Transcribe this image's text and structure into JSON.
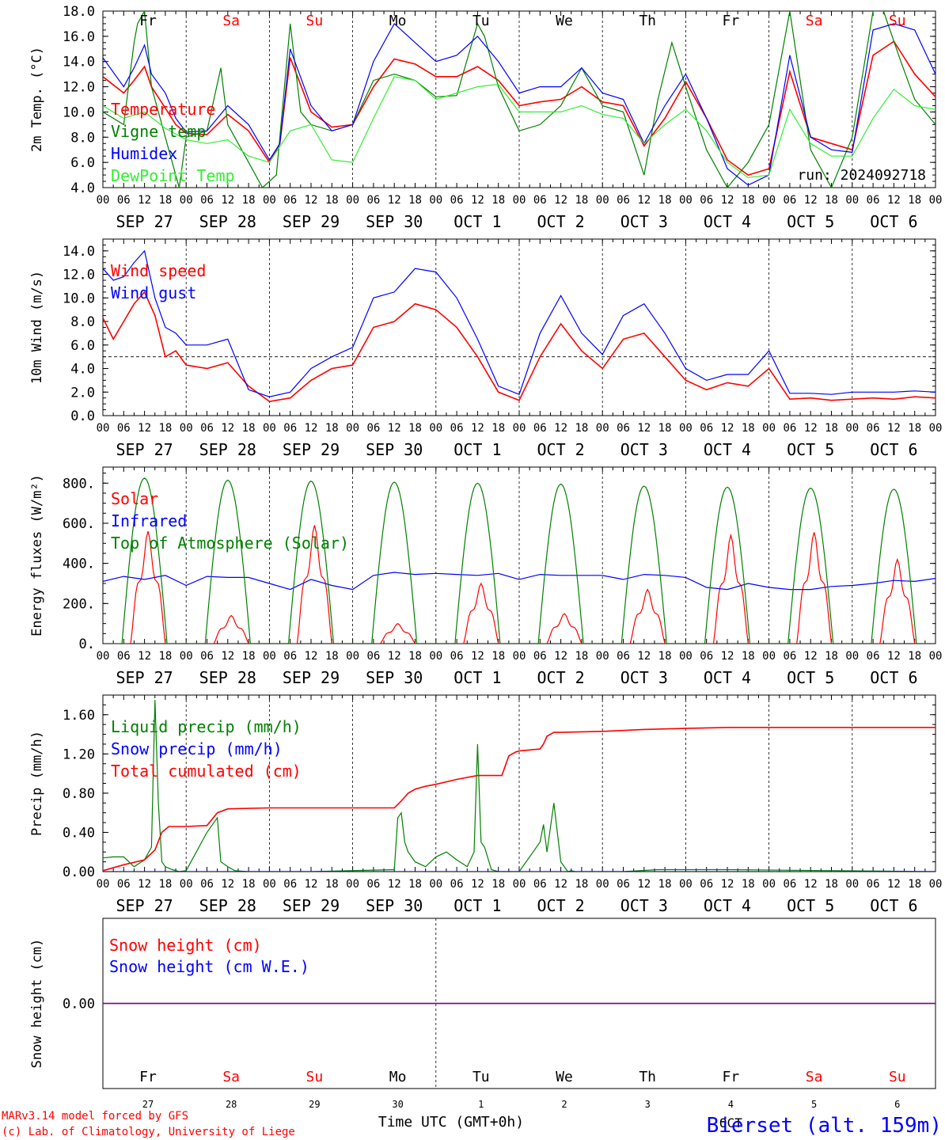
{
  "colors": {
    "red": "#ff0000",
    "green": "#008000",
    "blue": "#0000ff",
    "lightgreen": "#33ee33",
    "purple": "#800080",
    "black": "#000000"
  },
  "run_label": "run: 2024092718",
  "footer": {
    "credit1": "MARv3.14 model forced by GFS",
    "credit2": "(c) Lab. of Climatology, University of Liege",
    "xlabel": "Time UTC (GMT+0h)",
    "station": "Bierset (alt. 159m)",
    "month": "OCT"
  },
  "days": [
    {
      "abbr": "Fr",
      "date": "SEP 27",
      "num": "27",
      "weekend": false
    },
    {
      "abbr": "Sa",
      "date": "SEP 28",
      "num": "28",
      "weekend": true
    },
    {
      "abbr": "Su",
      "date": "SEP 29",
      "num": "29",
      "weekend": true
    },
    {
      "abbr": "Mo",
      "date": "SEP 30",
      "num": "30",
      "weekend": false
    },
    {
      "abbr": "Tu",
      "date": "OCT  1",
      "num": "1",
      "weekend": false
    },
    {
      "abbr": "We",
      "date": "OCT  2",
      "num": "2",
      "weekend": false
    },
    {
      "abbr": "Th",
      "date": "OCT  3",
      "num": "3",
      "weekend": false
    },
    {
      "abbr": "Fr",
      "date": "OCT  4",
      "num": "4",
      "weekend": false
    },
    {
      "abbr": "Sa",
      "date": "OCT  5",
      "num": "5",
      "weekend": true
    },
    {
      "abbr": "Su",
      "date": "OCT  6",
      "num": "6",
      "weekend": true
    }
  ],
  "hour_labels": [
    "00",
    "06",
    "12",
    "18"
  ],
  "chart_data": [
    {
      "id": "temperature",
      "type": "line",
      "ylabel": "2m Temp. (°C)",
      "xunit": "hours since SEP 27 00 UTC",
      "ylim": [
        4,
        18
      ],
      "yticks": [
        4,
        6,
        8,
        10,
        12,
        14,
        16,
        18
      ],
      "ytick_labels": [
        "4.0",
        "6.0",
        "8.0",
        "10.0",
        "12.0",
        "14.0",
        "16.0",
        "18.0"
      ],
      "series": [
        {
          "name": "Temperature",
          "color": "red",
          "x": [
            0,
            6,
            9,
            12,
            14,
            18,
            21,
            24,
            30,
            36,
            42,
            48,
            51,
            54,
            60,
            66,
            72,
            78,
            84,
            90,
            96,
            102,
            108,
            114,
            120,
            126,
            132,
            138,
            144,
            150,
            156,
            162,
            168,
            174,
            180,
            186,
            192,
            198,
            204,
            210,
            216,
            222,
            228,
            234,
            240
          ],
          "y": [
            12.8,
            11.5,
            12.5,
            13.6,
            12.0,
            10.3,
            9.0,
            8.3,
            8.2,
            9.8,
            8.5,
            6.0,
            7.5,
            14.3,
            10.0,
            8.8,
            9.0,
            12.0,
            14.2,
            13.8,
            12.8,
            12.8,
            13.6,
            12.5,
            10.5,
            10.8,
            11.0,
            12.0,
            10.8,
            10.5,
            7.3,
            9.5,
            12.4,
            9.5,
            6.2,
            5.0,
            5.5,
            13.2,
            8.0,
            7.5,
            7.0,
            14.5,
            15.6,
            13.0,
            11.2
          ]
        },
        {
          "name": "Vigne temp",
          "color": "green",
          "x": [
            0,
            6,
            9,
            10,
            12,
            14,
            18,
            22,
            24,
            30,
            34,
            36,
            42,
            46,
            50,
            54,
            57,
            60,
            66,
            72,
            78,
            84,
            90,
            96,
            102,
            108,
            110,
            114,
            120,
            126,
            132,
            138,
            144,
            150,
            156,
            160,
            164,
            168,
            174,
            180,
            186,
            192,
            198,
            204,
            210,
            216,
            222,
            225,
            230,
            234,
            240
          ],
          "y": [
            10.0,
            9.0,
            15.5,
            17.0,
            18.0,
            12.0,
            8.0,
            4.0,
            8.0,
            8.5,
            13.5,
            9.0,
            6.0,
            4.0,
            5.0,
            17.0,
            10.0,
            9.0,
            8.5,
            9.0,
            12.5,
            13.0,
            12.5,
            11.2,
            11.3,
            17.0,
            16.0,
            12.0,
            8.5,
            9.0,
            10.5,
            13.5,
            10.5,
            10.0,
            5.0,
            11.0,
            15.5,
            12.0,
            7.0,
            4.0,
            6.0,
            9.0,
            18.0,
            7.0,
            4.0,
            8.0,
            18.0,
            18.0,
            14.0,
            11.0,
            9.0
          ]
        },
        {
          "name": "Humidex",
          "color": "blue",
          "x": [
            0,
            6,
            9,
            12,
            14,
            18,
            21,
            24,
            30,
            36,
            42,
            48,
            51,
            54,
            60,
            66,
            72,
            78,
            84,
            90,
            96,
            102,
            108,
            114,
            120,
            126,
            132,
            138,
            144,
            150,
            156,
            162,
            168,
            174,
            180,
            186,
            192,
            198,
            204,
            210,
            216,
            222,
            228,
            234,
            240
          ],
          "y": [
            14.3,
            12.0,
            13.5,
            15.3,
            13.0,
            11.5,
            9.5,
            8.4,
            8.5,
            10.5,
            9.0,
            6.2,
            7.5,
            15.0,
            10.5,
            8.5,
            9.0,
            14.0,
            17.0,
            15.5,
            14.0,
            14.5,
            16.0,
            14.0,
            11.5,
            12.0,
            12.0,
            13.5,
            11.5,
            11.0,
            7.5,
            10.5,
            13.0,
            9.5,
            5.5,
            4.2,
            5.0,
            14.5,
            8.0,
            7.0,
            6.8,
            16.5,
            17.0,
            16.5,
            13.0
          ]
        },
        {
          "name": "DewPoint Temp",
          "color": "lightgreen",
          "x": [
            0,
            6,
            12,
            18,
            24,
            30,
            36,
            42,
            48,
            54,
            60,
            66,
            72,
            78,
            84,
            90,
            96,
            102,
            108,
            114,
            120,
            126,
            132,
            138,
            144,
            150,
            156,
            162,
            168,
            174,
            180,
            186,
            192,
            198,
            204,
            210,
            216,
            222,
            228,
            234,
            240
          ],
          "y": [
            10.5,
            9.5,
            10.0,
            8.7,
            7.8,
            7.5,
            7.8,
            6.5,
            6.0,
            8.5,
            9.0,
            6.2,
            6.0,
            9.5,
            12.8,
            12.5,
            11.0,
            11.5,
            12.0,
            12.2,
            10.0,
            10.0,
            10.0,
            10.5,
            9.8,
            9.5,
            7.5,
            9.0,
            10.2,
            8.5,
            6.0,
            4.8,
            5.0,
            10.2,
            7.5,
            6.5,
            6.5,
            9.5,
            11.8,
            10.5,
            10.2
          ]
        }
      ]
    },
    {
      "id": "wind",
      "type": "line",
      "ylabel": "10m Wind (m/s)",
      "xunit": "hours since SEP 27 00 UTC",
      "ylim": [
        0,
        15
      ],
      "yticks": [
        0,
        2,
        4,
        6,
        8,
        10,
        12,
        14
      ],
      "ytick_labels": [
        "0.0",
        "2.0",
        "4.0",
        "6.0",
        "8.0",
        "10.0",
        "12.0",
        "14.0"
      ],
      "ref_line": 5,
      "series": [
        {
          "name": "Wind speed",
          "color": "red",
          "x": [
            0,
            3,
            6,
            9,
            12,
            15,
            18,
            21,
            24,
            30,
            36,
            42,
            48,
            54,
            60,
            66,
            72,
            78,
            84,
            90,
            96,
            102,
            108,
            114,
            120,
            126,
            132,
            138,
            144,
            150,
            156,
            162,
            168,
            174,
            180,
            186,
            192,
            198,
            204,
            210,
            216,
            222,
            228,
            234,
            240
          ],
          "y": [
            8.3,
            6.5,
            8.0,
            9.5,
            10.5,
            8.5,
            5.0,
            5.5,
            4.3,
            4.0,
            4.5,
            2.5,
            1.2,
            1.5,
            3.0,
            4.0,
            4.3,
            7.5,
            8.0,
            9.5,
            9.0,
            7.5,
            5.0,
            2.0,
            1.3,
            5.0,
            7.8,
            5.5,
            4.0,
            6.5,
            7.0,
            5.0,
            3.0,
            2.2,
            2.8,
            2.5,
            4.0,
            1.4,
            1.5,
            1.3,
            1.4,
            1.5,
            1.4,
            1.6,
            1.5
          ]
        },
        {
          "name": "Wind gust",
          "color": "blue",
          "x": [
            0,
            3,
            6,
            9,
            12,
            15,
            18,
            21,
            24,
            30,
            36,
            42,
            48,
            54,
            60,
            66,
            72,
            78,
            84,
            90,
            96,
            102,
            108,
            114,
            120,
            126,
            132,
            138,
            144,
            150,
            156,
            162,
            168,
            174,
            180,
            186,
            192,
            198,
            204,
            210,
            216,
            222,
            228,
            234,
            240
          ],
          "y": [
            12.5,
            11.5,
            11.8,
            13.0,
            14.0,
            10.0,
            7.5,
            7.0,
            6.0,
            6.0,
            6.5,
            2.2,
            1.6,
            2.0,
            4.0,
            5.0,
            5.8,
            10.0,
            10.5,
            12.5,
            12.2,
            10.0,
            6.5,
            2.5,
            1.8,
            7.0,
            10.2,
            7.0,
            5.2,
            8.5,
            9.5,
            7.0,
            4.0,
            3.0,
            3.5,
            3.5,
            5.5,
            1.9,
            1.9,
            1.8,
            2.0,
            2.0,
            2.0,
            2.1,
            2.0
          ]
        }
      ]
    },
    {
      "id": "energy",
      "type": "line",
      "ylabel": "Energy fluxes (W/m²)",
      "xunit": "hours since SEP 27 00 UTC",
      "ylim": [
        0,
        880
      ],
      "yticks": [
        0,
        200,
        400,
        600,
        800
      ],
      "ytick_labels": [
        "0.",
        "200.",
        "400.",
        "600.",
        "800."
      ],
      "series": [
        {
          "name": "Solar",
          "color": "red",
          "peak_hour": 13,
          "day_peaks": [
            560,
            140,
            590,
            100,
            300,
            150,
            270,
            540,
            555,
            420
          ]
        },
        {
          "name": "Infrared",
          "color": "blue",
          "x": [
            0,
            6,
            12,
            18,
            24,
            30,
            36,
            42,
            48,
            54,
            60,
            66,
            72,
            78,
            84,
            90,
            96,
            102,
            108,
            114,
            120,
            126,
            132,
            138,
            144,
            150,
            156,
            162,
            168,
            174,
            180,
            186,
            192,
            198,
            204,
            210,
            216,
            222,
            228,
            234,
            240
          ],
          "y": [
            310,
            335,
            320,
            340,
            290,
            335,
            330,
            330,
            300,
            270,
            320,
            290,
            270,
            340,
            355,
            345,
            350,
            345,
            340,
            350,
            320,
            345,
            340,
            340,
            340,
            320,
            345,
            340,
            330,
            280,
            270,
            300,
            280,
            270,
            270,
            285,
            290,
            300,
            315,
            310,
            325
          ]
        },
        {
          "name": "Top of Atmosphere (Solar)",
          "color": "green",
          "peak_hour": 12,
          "day_peaks": [
            825,
            815,
            810,
            805,
            800,
            795,
            785,
            780,
            775,
            770
          ]
        }
      ]
    },
    {
      "id": "precip",
      "type": "line",
      "ylabel": "Precip (mm/h)",
      "xunit": "hours since SEP 27 00 UTC",
      "ylim": [
        0,
        1.8
      ],
      "yticks": [
        0,
        0.4,
        0.8,
        1.2,
        1.6
      ],
      "ytick_labels": [
        "0.00",
        "0.40",
        "0.80",
        "1.20",
        "1.60"
      ],
      "series": [
        {
          "name": "Liquid precip (mm/h)",
          "color": "green",
          "x": [
            0,
            3,
            6,
            9,
            12,
            14,
            15,
            16,
            17,
            18,
            20,
            22,
            24,
            30,
            33,
            34,
            36,
            38,
            42,
            48,
            60,
            84,
            85,
            86,
            87,
            88,
            90,
            93,
            96,
            99,
            102,
            105,
            107,
            108,
            109,
            110,
            112,
            114,
            116,
            118,
            120,
            126,
            127,
            128,
            130,
            132,
            134,
            135,
            136,
            138,
            144,
            150,
            160,
            180,
            240
          ],
          "y": [
            0.14,
            0.15,
            0.15,
            0.05,
            0.12,
            0.25,
            1.75,
            0.7,
            0.1,
            0.05,
            0.02,
            0,
            0.01,
            0.4,
            0.55,
            0.1,
            0.05,
            0.01,
            0,
            0,
            0,
            0.02,
            0.55,
            0.6,
            0.3,
            0.2,
            0.1,
            0.05,
            0.15,
            0.2,
            0.12,
            0.05,
            0.2,
            1.3,
            0.3,
            0.25,
            0.02,
            0,
            0,
            0,
            0,
            0.3,
            0.48,
            0.2,
            0.7,
            0.1,
            0,
            0.01,
            0,
            0,
            0,
            0,
            0.02,
            0.02,
            0
          ]
        },
        {
          "name": "Snow precip (mm/h)",
          "color": "blue",
          "x": [
            0,
            240
          ],
          "y": [
            0,
            0
          ]
        },
        {
          "name": "Total cumulated (cm)",
          "color": "red",
          "x": [
            0,
            6,
            12,
            15,
            17,
            19,
            24,
            30,
            33,
            36,
            48,
            60,
            72,
            84,
            86,
            88,
            90,
            93,
            96,
            102,
            108,
            114,
            115,
            117,
            119,
            120,
            126,
            127,
            128,
            130,
            132,
            144,
            156,
            168,
            180,
            192,
            204,
            216,
            228,
            240
          ],
          "y": [
            0.01,
            0.07,
            0.12,
            0.22,
            0.4,
            0.46,
            0.46,
            0.47,
            0.6,
            0.64,
            0.65,
            0.65,
            0.65,
            0.65,
            0.72,
            0.8,
            0.84,
            0.87,
            0.89,
            0.94,
            0.98,
            0.98,
            0.98,
            1.18,
            1.22,
            1.23,
            1.25,
            1.3,
            1.38,
            1.42,
            1.42,
            1.43,
            1.45,
            1.46,
            1.47,
            1.47,
            1.47,
            1.47,
            1.47,
            1.47
          ]
        }
      ]
    },
    {
      "id": "snow",
      "type": "line",
      "ylabel": "Snow height (cm)",
      "xunit": "hours since SEP 27 00 UTC",
      "ylim": [
        -1,
        1
      ],
      "yticks": [
        0
      ],
      "ytick_labels": [
        "0.00"
      ],
      "series": [
        {
          "name": "Snow height (cm)",
          "color": "red",
          "x": [
            0,
            240
          ],
          "y": [
            0,
            0
          ]
        },
        {
          "name": "Snow height (cm W.E.)",
          "color": "blue",
          "x": [
            0,
            240
          ],
          "y": [
            0,
            0
          ]
        }
      ]
    }
  ]
}
